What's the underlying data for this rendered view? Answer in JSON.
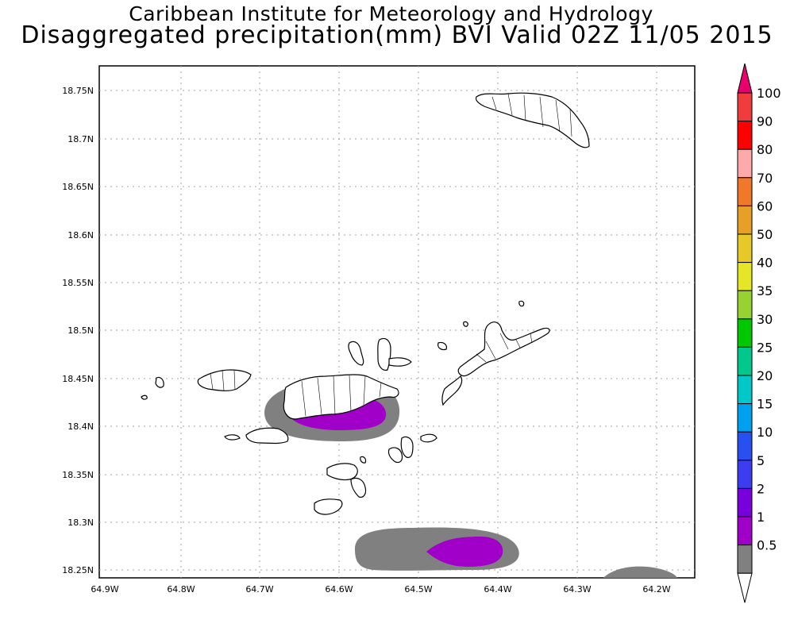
{
  "title_line1": "Caribbean Institute for Meteorology and Hydrology",
  "title_line2": "Disaggregated precipitation(mm) BVI Valid 02Z 11/05 2015",
  "lat_labels": [
    "18.75N",
    "18.7N",
    "18.65N",
    "18.6N",
    "18.55N",
    "18.5N",
    "18.45N",
    "18.4N",
    "18.35N",
    "18.3N",
    "18.25N"
  ],
  "lon_labels": [
    "64.9W",
    "64.8W",
    "64.7W",
    "64.6W",
    "64.5W",
    "64.4W",
    "64.3W",
    "64.2W"
  ],
  "colorbar": {
    "labels": [
      "100",
      "90",
      "80",
      "70",
      "60",
      "50",
      "40",
      "35",
      "30",
      "25",
      "20",
      "15",
      "10",
      "5",
      "2",
      "1",
      "0.5"
    ],
    "colors": [
      "#e8006e",
      "#f03c3c",
      "#ff0000",
      "#ffaaaa",
      "#f07828",
      "#e6a028",
      "#e6c828",
      "#e6e628",
      "#96d232",
      "#00c800",
      "#00c88c",
      "#00c8c8",
      "#00a0f0",
      "#2850f0",
      "#3c3cf0",
      "#7800dc",
      "#a000c8",
      "#808080",
      "#ffffff"
    ],
    "gray": "#808080",
    "purple": "#a000c8"
  }
}
